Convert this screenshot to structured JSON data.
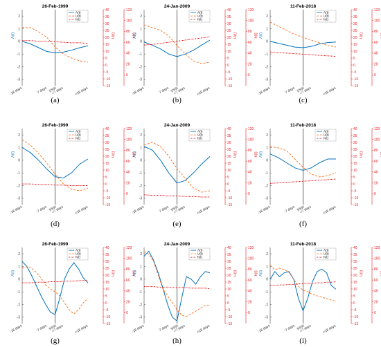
{
  "figure": {
    "axis_labels": {
      "y_left": "Λ(t)",
      "y_mid": "U(t)",
      "y_right": "h(t)",
      "ssw": "SSW"
    },
    "legend_entries": [
      "Λ(t)",
      "U(t)",
      "h(t)"
    ],
    "x_ticks": [
      "-28 days",
      "-7 days",
      "+7 days",
      "+28 days"
    ],
    "y_left_ticks": [
      "2",
      "1",
      "0",
      "-1",
      "-2",
      "-3"
    ],
    "y_mid_ticks": [
      "40",
      "35",
      "30",
      "25",
      "20",
      "15",
      "10",
      "5",
      "0",
      "-5",
      "-10",
      "-15"
    ],
    "y_right_ticks": [
      "120",
      "100",
      "80",
      "60",
      "40",
      "20",
      "0"
    ],
    "colors": {
      "lambda": "#0072bd",
      "u": "#ff6a13",
      "h": "#e41a1c",
      "ssw_line": "#333333"
    }
  },
  "chart_data": [
    {
      "type": "line",
      "panel": "(a)",
      "title": "26-Feb-1999",
      "x": [
        -28,
        -21,
        -14,
        -7,
        0,
        7,
        14,
        21,
        28
      ],
      "series": [
        {
          "name": "Λ(t)",
          "axis": "left",
          "values": [
            0.0,
            -0.2,
            -0.5,
            -0.8,
            -0.9,
            -0.85,
            -0.7,
            -0.5,
            -0.35
          ]
        },
        {
          "name": "U(t)",
          "axis": "mid",
          "values": [
            27,
            27,
            24,
            20,
            13,
            8,
            5,
            3,
            2
          ]
        },
        {
          "name": "h(t)",
          "axis": "right",
          "values": [
            63,
            63,
            62,
            62,
            61,
            60,
            59,
            59,
            58
          ]
        }
      ],
      "xlim": [
        -28,
        28
      ],
      "ylim_left": [
        -3.5,
        2.5
      ],
      "ylim_mid": [
        -15,
        40
      ],
      "ylim_right": [
        -20,
        120
      ]
    },
    {
      "type": "line",
      "panel": "(b)",
      "title": "24-Jan-2009",
      "x": [
        -28,
        -21,
        -14,
        -7,
        0,
        7,
        14,
        21,
        28
      ],
      "series": [
        {
          "name": "Λ(t)",
          "axis": "left",
          "values": [
            -0.05,
            -0.3,
            -0.6,
            -1.0,
            -1.2,
            -1.0,
            -0.7,
            -0.3,
            0.1
          ]
        },
        {
          "name": "U(t)",
          "axis": "mid",
          "values": [
            29,
            27,
            25,
            21,
            14,
            8,
            3,
            1,
            2
          ]
        },
        {
          "name": "h(t)",
          "axis": "right",
          "values": [
            55,
            56,
            58,
            60,
            62,
            64,
            66,
            68,
            70
          ]
        }
      ],
      "xlim": [
        -28,
        28
      ],
      "ylim_left": [
        -3.5,
        2.5
      ],
      "ylim_mid": [
        -15,
        40
      ],
      "ylim_right": [
        -20,
        120
      ]
    },
    {
      "type": "line",
      "panel": "(c)",
      "title": "11-Feb-2018",
      "x": [
        -28,
        -21,
        -14,
        -7,
        0,
        7,
        14,
        21,
        28
      ],
      "series": [
        {
          "name": "Λ(t)",
          "axis": "left",
          "values": [
            0.0,
            -0.15,
            -0.3,
            -0.45,
            -0.5,
            -0.4,
            -0.2,
            -0.1,
            -0.05
          ]
        },
        {
          "name": "U(t)",
          "axis": "mid",
          "values": [
            31,
            28,
            25,
            22,
            20,
            18,
            16,
            14,
            13
          ]
        },
        {
          "name": "h(t)",
          "axis": "right",
          "values": [
            42,
            41,
            40,
            39,
            38,
            37,
            36,
            35,
            34
          ]
        }
      ],
      "xlim": [
        -28,
        28
      ],
      "ylim_left": [
        -3.5,
        2.5
      ],
      "ylim_mid": [
        -15,
        40
      ],
      "ylim_right": [
        -20,
        120
      ]
    },
    {
      "type": "line",
      "panel": "(d)",
      "title": "26-Feb-1999",
      "x": [
        -28,
        -21,
        -14,
        -7,
        0,
        7,
        14,
        21,
        28
      ],
      "series": [
        {
          "name": "Λ(t)",
          "axis": "left",
          "values": [
            1.0,
            0.6,
            0.0,
            -0.7,
            -1.3,
            -1.4,
            -1.0,
            -0.3,
            0.1
          ]
        },
        {
          "name": "U(t)",
          "axis": "mid",
          "values": [
            32,
            28,
            22,
            15,
            7,
            0,
            -4,
            -5,
            -3
          ]
        },
        {
          "name": "h(t)",
          "axis": "right",
          "values": [
            18,
            18,
            17,
            17,
            16,
            16,
            15,
            15,
            15
          ]
        }
      ],
      "xlim": [
        -28,
        28
      ],
      "ylim_left": [
        -3.5,
        2.5
      ],
      "ylim_mid": [
        -15,
        40
      ],
      "ylim_right": [
        -20,
        120
      ]
    },
    {
      "type": "line",
      "panel": "(e)",
      "title": "24-Jan-2009",
      "x": [
        -28,
        -21,
        -14,
        -7,
        0,
        7,
        14,
        21,
        28
      ],
      "series": [
        {
          "name": "Λ(t)",
          "axis": "left",
          "values": [
            1.1,
            0.8,
            0.0,
            -1.0,
            -1.8,
            -1.6,
            -1.0,
            -0.3,
            0.3
          ]
        },
        {
          "name": "U(t)",
          "axis": "mid",
          "values": [
            28,
            30,
            27,
            20,
            11,
            4,
            -3,
            -6,
            -5
          ]
        },
        {
          "name": "h(t)",
          "axis": "right",
          "values": [
            -2,
            -3,
            -3,
            -4,
            -4,
            -5,
            -5,
            -6,
            -6
          ]
        }
      ],
      "xlim": [
        -28,
        28
      ],
      "ylim_left": [
        -3.5,
        2.5
      ],
      "ylim_mid": [
        -15,
        40
      ],
      "ylim_right": [
        -20,
        120
      ]
    },
    {
      "type": "line",
      "panel": "(f)",
      "title": "11-Feb-2018",
      "x": [
        -28,
        -21,
        -14,
        -7,
        0,
        7,
        14,
        21,
        28
      ],
      "series": [
        {
          "name": "Λ(t)",
          "axis": "left",
          "values": [
            0.5,
            0.2,
            -0.2,
            -0.6,
            -0.8,
            -0.6,
            -0.2,
            0.1,
            0.1
          ]
        },
        {
          "name": "U(t)",
          "axis": "mid",
          "values": [
            27,
            26,
            24,
            18,
            12,
            7,
            5,
            6,
            8
          ]
        },
        {
          "name": "h(t)",
          "axis": "right",
          "values": [
            19,
            20,
            21,
            22,
            23,
            24,
            25,
            26,
            27
          ]
        }
      ],
      "xlim": [
        -28,
        28
      ],
      "ylim_left": [
        -3.5,
        2.5
      ],
      "ylim_mid": [
        -15,
        40
      ],
      "ylim_right": [
        -20,
        120
      ]
    },
    {
      "type": "line",
      "panel": "(g)",
      "title": "26-Feb-1999",
      "x": [
        -28,
        -24,
        -20,
        -16,
        -12,
        -8,
        -4,
        0,
        4,
        8,
        12,
        16,
        20,
        24,
        28
      ],
      "series": [
        {
          "name": "Λ(t)",
          "axis": "left",
          "values": [
            1.4,
            1.0,
            0.3,
            -0.5,
            -1.3,
            -2.0,
            -2.6,
            -2.8,
            -1.5,
            0.0,
            0.8,
            1.3,
            0.8,
            0.1,
            -0.3
          ]
        },
        {
          "name": "U(t)",
          "axis": "mid",
          "values": [
            25,
            26,
            25,
            22,
            18,
            13,
            10,
            8,
            5,
            0,
            -5,
            -8,
            -5,
            0,
            3
          ]
        },
        {
          "name": "h(t)",
          "axis": "right",
          "values": [
            55,
            55,
            55,
            56,
            56,
            56,
            57,
            57,
            57,
            58,
            58,
            58,
            59,
            59,
            59
          ]
        }
      ],
      "xlim": [
        -28,
        28
      ],
      "ylim_left": [
        -3.5,
        2.5
      ],
      "ylim_mid": [
        -15,
        40
      ],
      "ylim_right": [
        -20,
        120
      ]
    },
    {
      "type": "line",
      "panel": "(h)",
      "title": "24-Jan-2009",
      "x": [
        -28,
        -24,
        -20,
        -16,
        -12,
        -8,
        -4,
        0,
        4,
        8,
        12,
        16,
        20,
        24,
        28
      ],
      "series": [
        {
          "name": "Λ(t)",
          "axis": "left",
          "values": [
            1.8,
            2.2,
            1.5,
            0.5,
            -0.7,
            -2.0,
            -3.0,
            -3.3,
            -1.5,
            0.2,
            0.0,
            -0.4,
            0.2,
            0.6,
            0.5
          ]
        },
        {
          "name": "U(t)",
          "axis": "mid",
          "values": [
            37,
            35,
            30,
            20,
            10,
            5,
            0,
            -5,
            -9,
            -10,
            -8,
            -6,
            -4,
            -2,
            -2
          ]
        },
        {
          "name": "h(t)",
          "axis": "right",
          "values": [
            48,
            48,
            48,
            47,
            47,
            47,
            46,
            46,
            46,
            46,
            45,
            45,
            45,
            45,
            44
          ]
        }
      ],
      "xlim": [
        -28,
        28
      ],
      "ylim_left": [
        -3.5,
        2.5
      ],
      "ylim_mid": [
        -15,
        40
      ],
      "ylim_right": [
        -20,
        120
      ]
    },
    {
      "type": "line",
      "panel": "(i)",
      "title": "11-Feb-2018",
      "x": [
        -28,
        -24,
        -20,
        -16,
        -12,
        -8,
        -4,
        0,
        4,
        8,
        12,
        16,
        20,
        24,
        28
      ],
      "series": [
        {
          "name": "Λ(t)",
          "axis": "left",
          "values": [
            0.0,
            0.6,
            0.2,
            0.5,
            0.6,
            0.0,
            -1.5,
            -2.5,
            -1.5,
            -0.2,
            0.6,
            0.8,
            0.5,
            -0.5,
            -0.8
          ]
        },
        {
          "name": "U(t)",
          "axis": "mid",
          "values": [
            27,
            24,
            25,
            24,
            22,
            17,
            12,
            9,
            8,
            6,
            5,
            4,
            3,
            2,
            1
          ]
        },
        {
          "name": "h(t)",
          "axis": "right",
          "values": [
            50,
            50,
            51,
            51,
            52,
            52,
            53,
            53,
            54,
            54,
            55,
            55,
            56,
            56,
            57
          ]
        }
      ],
      "xlim": [
        -28,
        28
      ],
      "ylim_left": [
        -3.5,
        2.5
      ],
      "ylim_mid": [
        -15,
        40
      ],
      "ylim_right": [
        -20,
        120
      ]
    }
  ]
}
